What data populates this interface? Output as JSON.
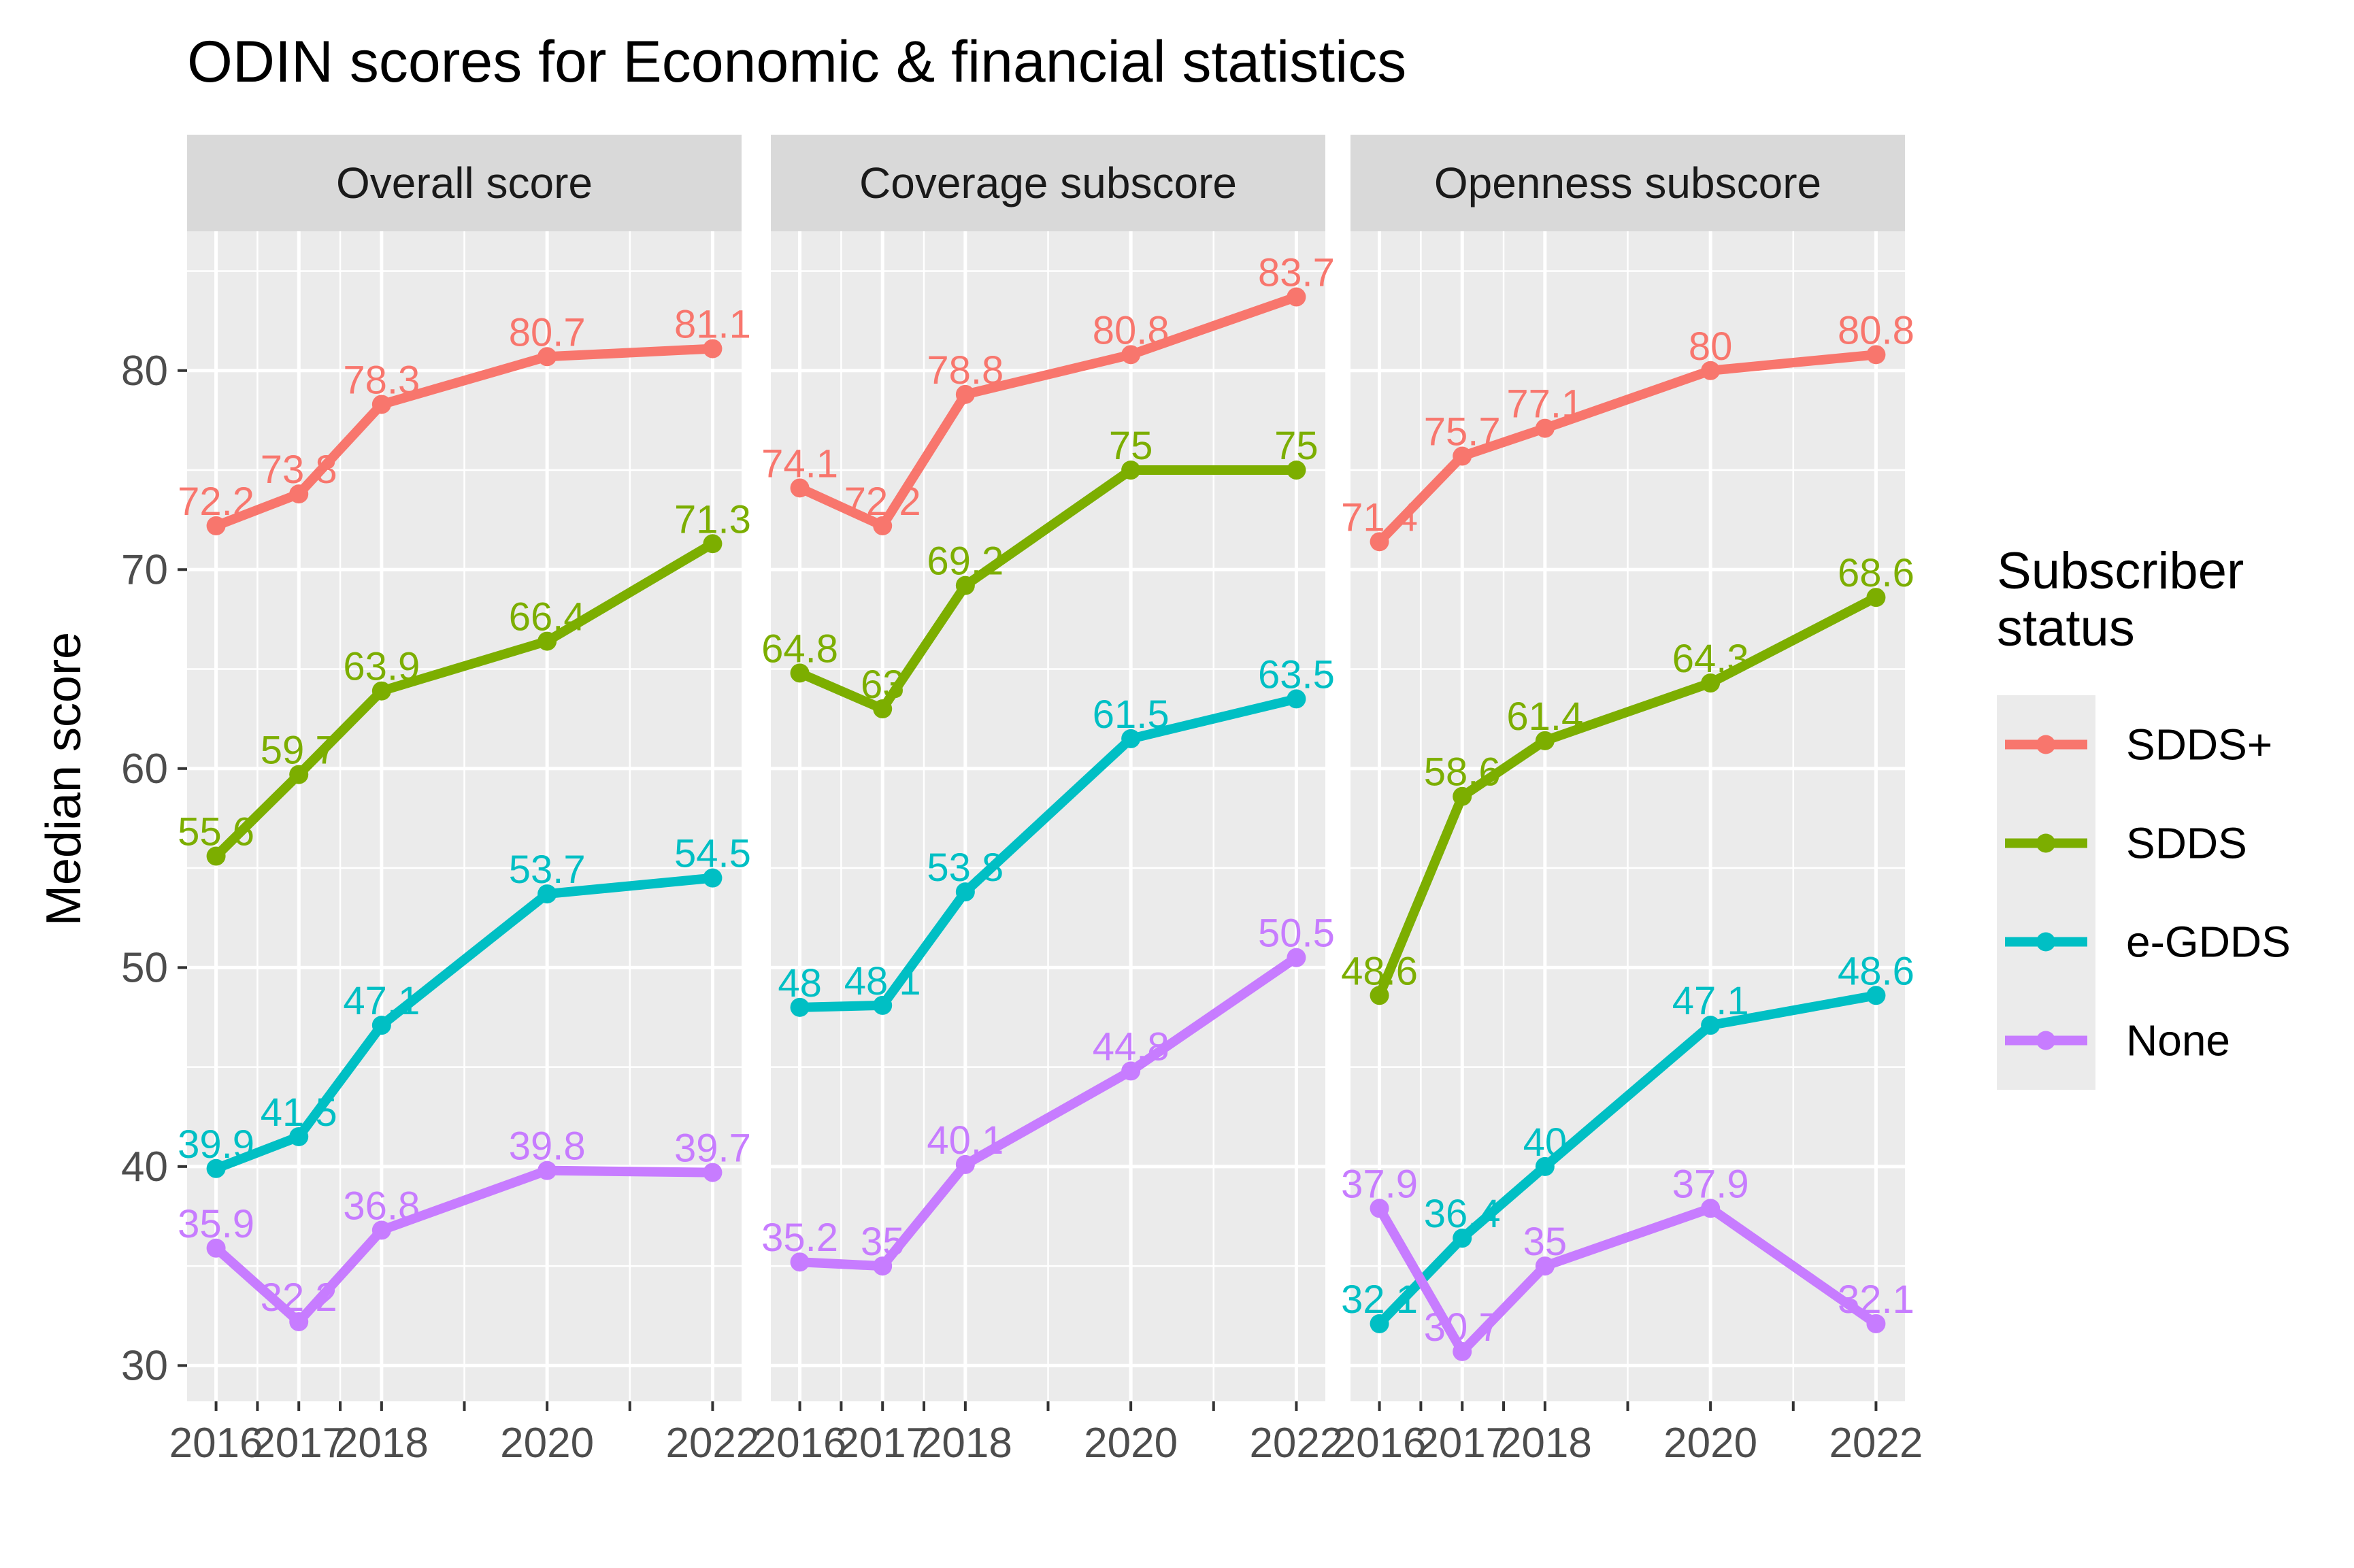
{
  "chart_data": {
    "type": "line",
    "title": "ODIN scores for Economic & financial statistics",
    "ylabel": "Median score",
    "xlabel": "",
    "x": [
      2016,
      2017,
      2018,
      2020,
      2022
    ],
    "x_tick_labels": [
      "2016",
      "2017",
      "2018",
      "2020",
      "2022"
    ],
    "xlim": [
      2015.65,
      2022.35
    ],
    "ylim": [
      28.2,
      87.0
    ],
    "y_ticks": [
      30,
      40,
      50,
      60,
      70,
      80
    ],
    "grid": true,
    "legend": {
      "title": "Subscriber status",
      "title_lines": [
        "Subscriber",
        "status"
      ],
      "position": "right",
      "entries": [
        "SDDS+",
        "SDDS",
        "e-GDDS",
        "None"
      ]
    },
    "colors": {
      "SDDS+": "#F8766D",
      "SDDS": "#7CAE00",
      "e-GDDS": "#00BFC4",
      "None": "#C77CFF",
      "panel_bg": "#EBEBEB",
      "strip_bg": "#D9D9D9",
      "grid": "#FFFFFF"
    },
    "panels": [
      {
        "name": "Overall score",
        "series": [
          {
            "name": "SDDS+",
            "values": [
              72.2,
              73.8,
              78.3,
              80.7,
              81.1
            ],
            "labels": [
              "72.2",
              "73.8",
              "78.3",
              "80.7",
              "81.1"
            ]
          },
          {
            "name": "SDDS",
            "values": [
              55.6,
              59.7,
              63.9,
              66.4,
              71.3
            ],
            "labels": [
              "55.6",
              "59.7",
              "63.9",
              "66.4",
              "71.3"
            ]
          },
          {
            "name": "e-GDDS",
            "values": [
              39.9,
              41.5,
              47.1,
              53.7,
              54.5
            ],
            "labels": [
              "39.9",
              "41.5",
              "47.1",
              "53.7",
              "54.5"
            ]
          },
          {
            "name": "None",
            "values": [
              35.9,
              32.2,
              36.8,
              39.8,
              39.7
            ],
            "labels": [
              "35.9",
              "32.2",
              "36.8",
              "39.8",
              "39.7"
            ]
          }
        ]
      },
      {
        "name": "Coverage subscore",
        "series": [
          {
            "name": "SDDS+",
            "values": [
              74.1,
              72.2,
              78.8,
              80.8,
              83.7
            ],
            "labels": [
              "74.1",
              "72.2",
              "78.8",
              "80.8",
              "83.7"
            ]
          },
          {
            "name": "SDDS",
            "values": [
              64.8,
              63,
              69.2,
              75,
              75
            ],
            "labels": [
              "64.8",
              "63",
              "69.2",
              "75",
              "75"
            ]
          },
          {
            "name": "e-GDDS",
            "values": [
              48,
              48.1,
              53.8,
              61.5,
              63.5
            ],
            "labels": [
              "48",
              "48.1",
              "53.8",
              "61.5",
              "63.5"
            ]
          },
          {
            "name": "None",
            "values": [
              35.2,
              35,
              40.1,
              44.8,
              50.5
            ],
            "labels": [
              "35.2",
              "35",
              "40.1",
              "44.8",
              "50.5"
            ]
          }
        ]
      },
      {
        "name": "Openness subscore",
        "series": [
          {
            "name": "SDDS+",
            "values": [
              71.4,
              75.7,
              77.1,
              80,
              80.8
            ],
            "labels": [
              "71.4",
              "75.7",
              "77.1",
              "80",
              "80.8"
            ]
          },
          {
            "name": "SDDS",
            "values": [
              48.6,
              58.6,
              61.4,
              64.3,
              68.6
            ],
            "labels": [
              "48.6",
              "58.6",
              "61.4",
              "64.3",
              "68.6"
            ]
          },
          {
            "name": "e-GDDS",
            "values": [
              32.1,
              36.4,
              40,
              47.1,
              48.6
            ],
            "labels": [
              "32.1",
              "36.4",
              "40",
              "47.1",
              "48.6"
            ]
          },
          {
            "name": "None",
            "values": [
              37.9,
              30.7,
              35,
              37.9,
              32.1
            ],
            "labels": [
              "37.9",
              "30.7",
              "35",
              "37.9",
              "32.1"
            ]
          }
        ]
      }
    ]
  }
}
